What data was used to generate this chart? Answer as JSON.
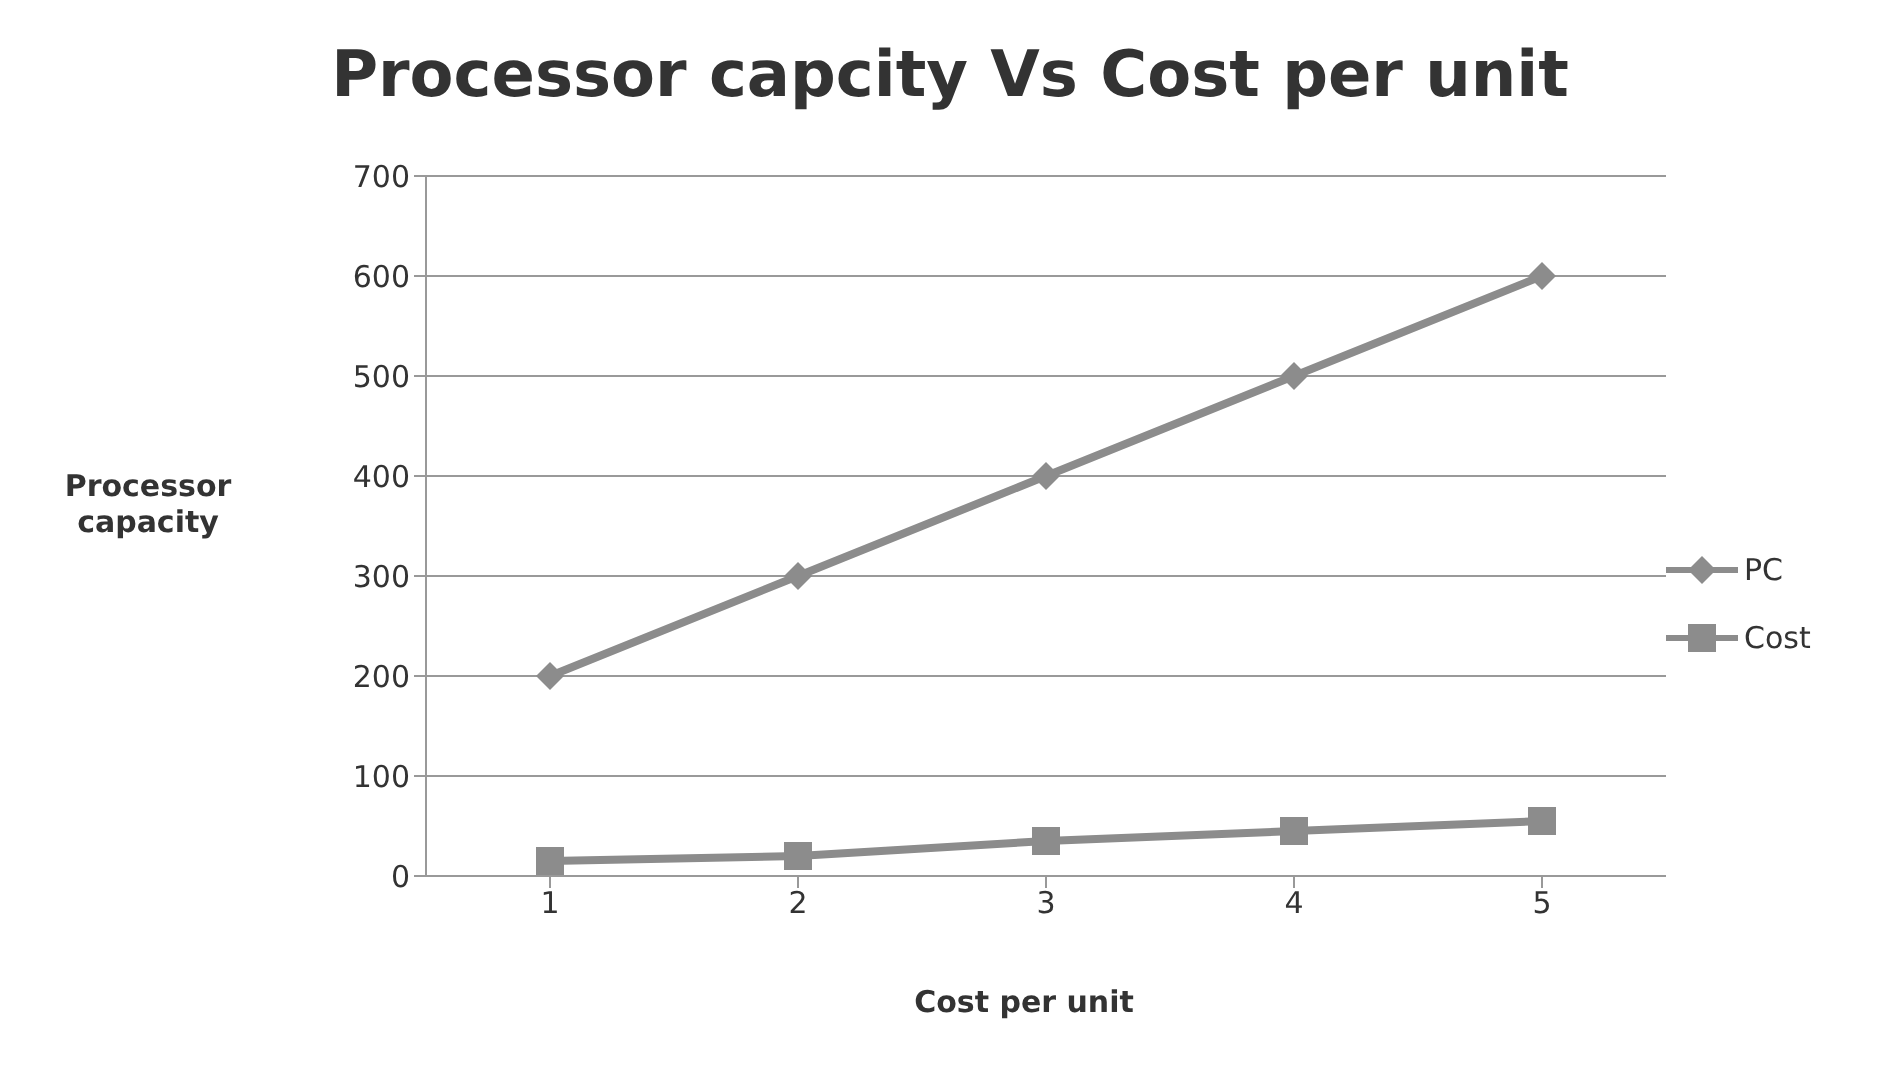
{
  "chart_data": {
    "type": "line",
    "title": "Processor capcity Vs Cost per unit",
    "xlabel": "Cost per unit",
    "ylabel": "Processor capacity",
    "categories": [
      "1",
      "2",
      "3",
      "4",
      "5"
    ],
    "series": [
      {
        "name": "PC",
        "color": "#8c8c8c",
        "marker": "diamond",
        "values": [
          200,
          300,
          400,
          500,
          600
        ]
      },
      {
        "name": "Cost",
        "color": "#8c8c8c",
        "marker": "square",
        "values": [
          15,
          20,
          35,
          45,
          55
        ]
      }
    ],
    "ylim": [
      0,
      700
    ],
    "yticks": [
      0,
      100,
      200,
      300,
      400,
      500,
      600,
      700
    ],
    "grid": "y",
    "legend": "right"
  }
}
